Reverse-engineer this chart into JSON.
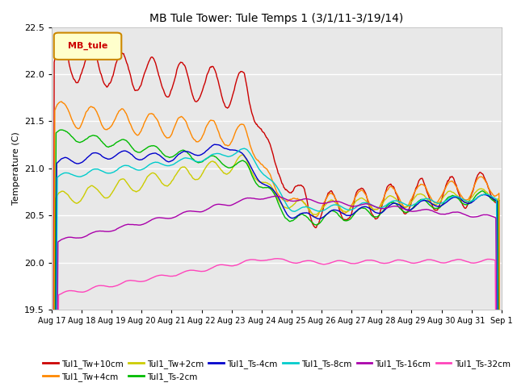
{
  "title": "MB Tule Tower: Tule Temps 1 (3/1/11-3/19/14)",
  "ylabel": "Temperature (C)",
  "ylim": [
    19.5,
    22.5
  ],
  "background_color": "#ffffff",
  "plot_bg_color": "#e8e8e8",
  "legend_box_label": "MB_tule",
  "legend_box_facecolor": "#ffffcc",
  "legend_box_edgecolor": "#cc8800",
  "legend_text_color": "#cc0000",
  "series": [
    {
      "label": "Tul1_Tw+10cm",
      "color": "#cc0000",
      "lw": 1.0
    },
    {
      "label": "Tul1_Tw+4cm",
      "color": "#ff8800",
      "lw": 1.0
    },
    {
      "label": "Tul1_Tw+2cm",
      "color": "#cccc00",
      "lw": 1.0
    },
    {
      "label": "Tul1_Ts-2cm",
      "color": "#00bb00",
      "lw": 1.0
    },
    {
      "label": "Tul1_Ts-4cm",
      "color": "#0000cc",
      "lw": 1.0
    },
    {
      "label": "Tul1_Ts-8cm",
      "color": "#00cccc",
      "lw": 1.0
    },
    {
      "label": "Tul1_Ts-16cm",
      "color": "#aa00aa",
      "lw": 1.0
    },
    {
      "label": "Tul1_Ts-32cm",
      "color": "#ff44bb",
      "lw": 1.0
    }
  ],
  "xtick_labels": [
    "Aug 17",
    "Aug 18",
    "Aug 19",
    "Aug 20",
    "Aug 21",
    "Aug 22",
    "Aug 23",
    "Aug 24",
    "Aug 25",
    "Aug 26",
    "Aug 27",
    "Aug 28",
    "Aug 29",
    "Aug 30",
    "Aug 31",
    "Sep 1"
  ],
  "ytick_labels": [
    19.5,
    20.0,
    20.5,
    21.0,
    21.5,
    22.0,
    22.5
  ],
  "n_days": 15
}
